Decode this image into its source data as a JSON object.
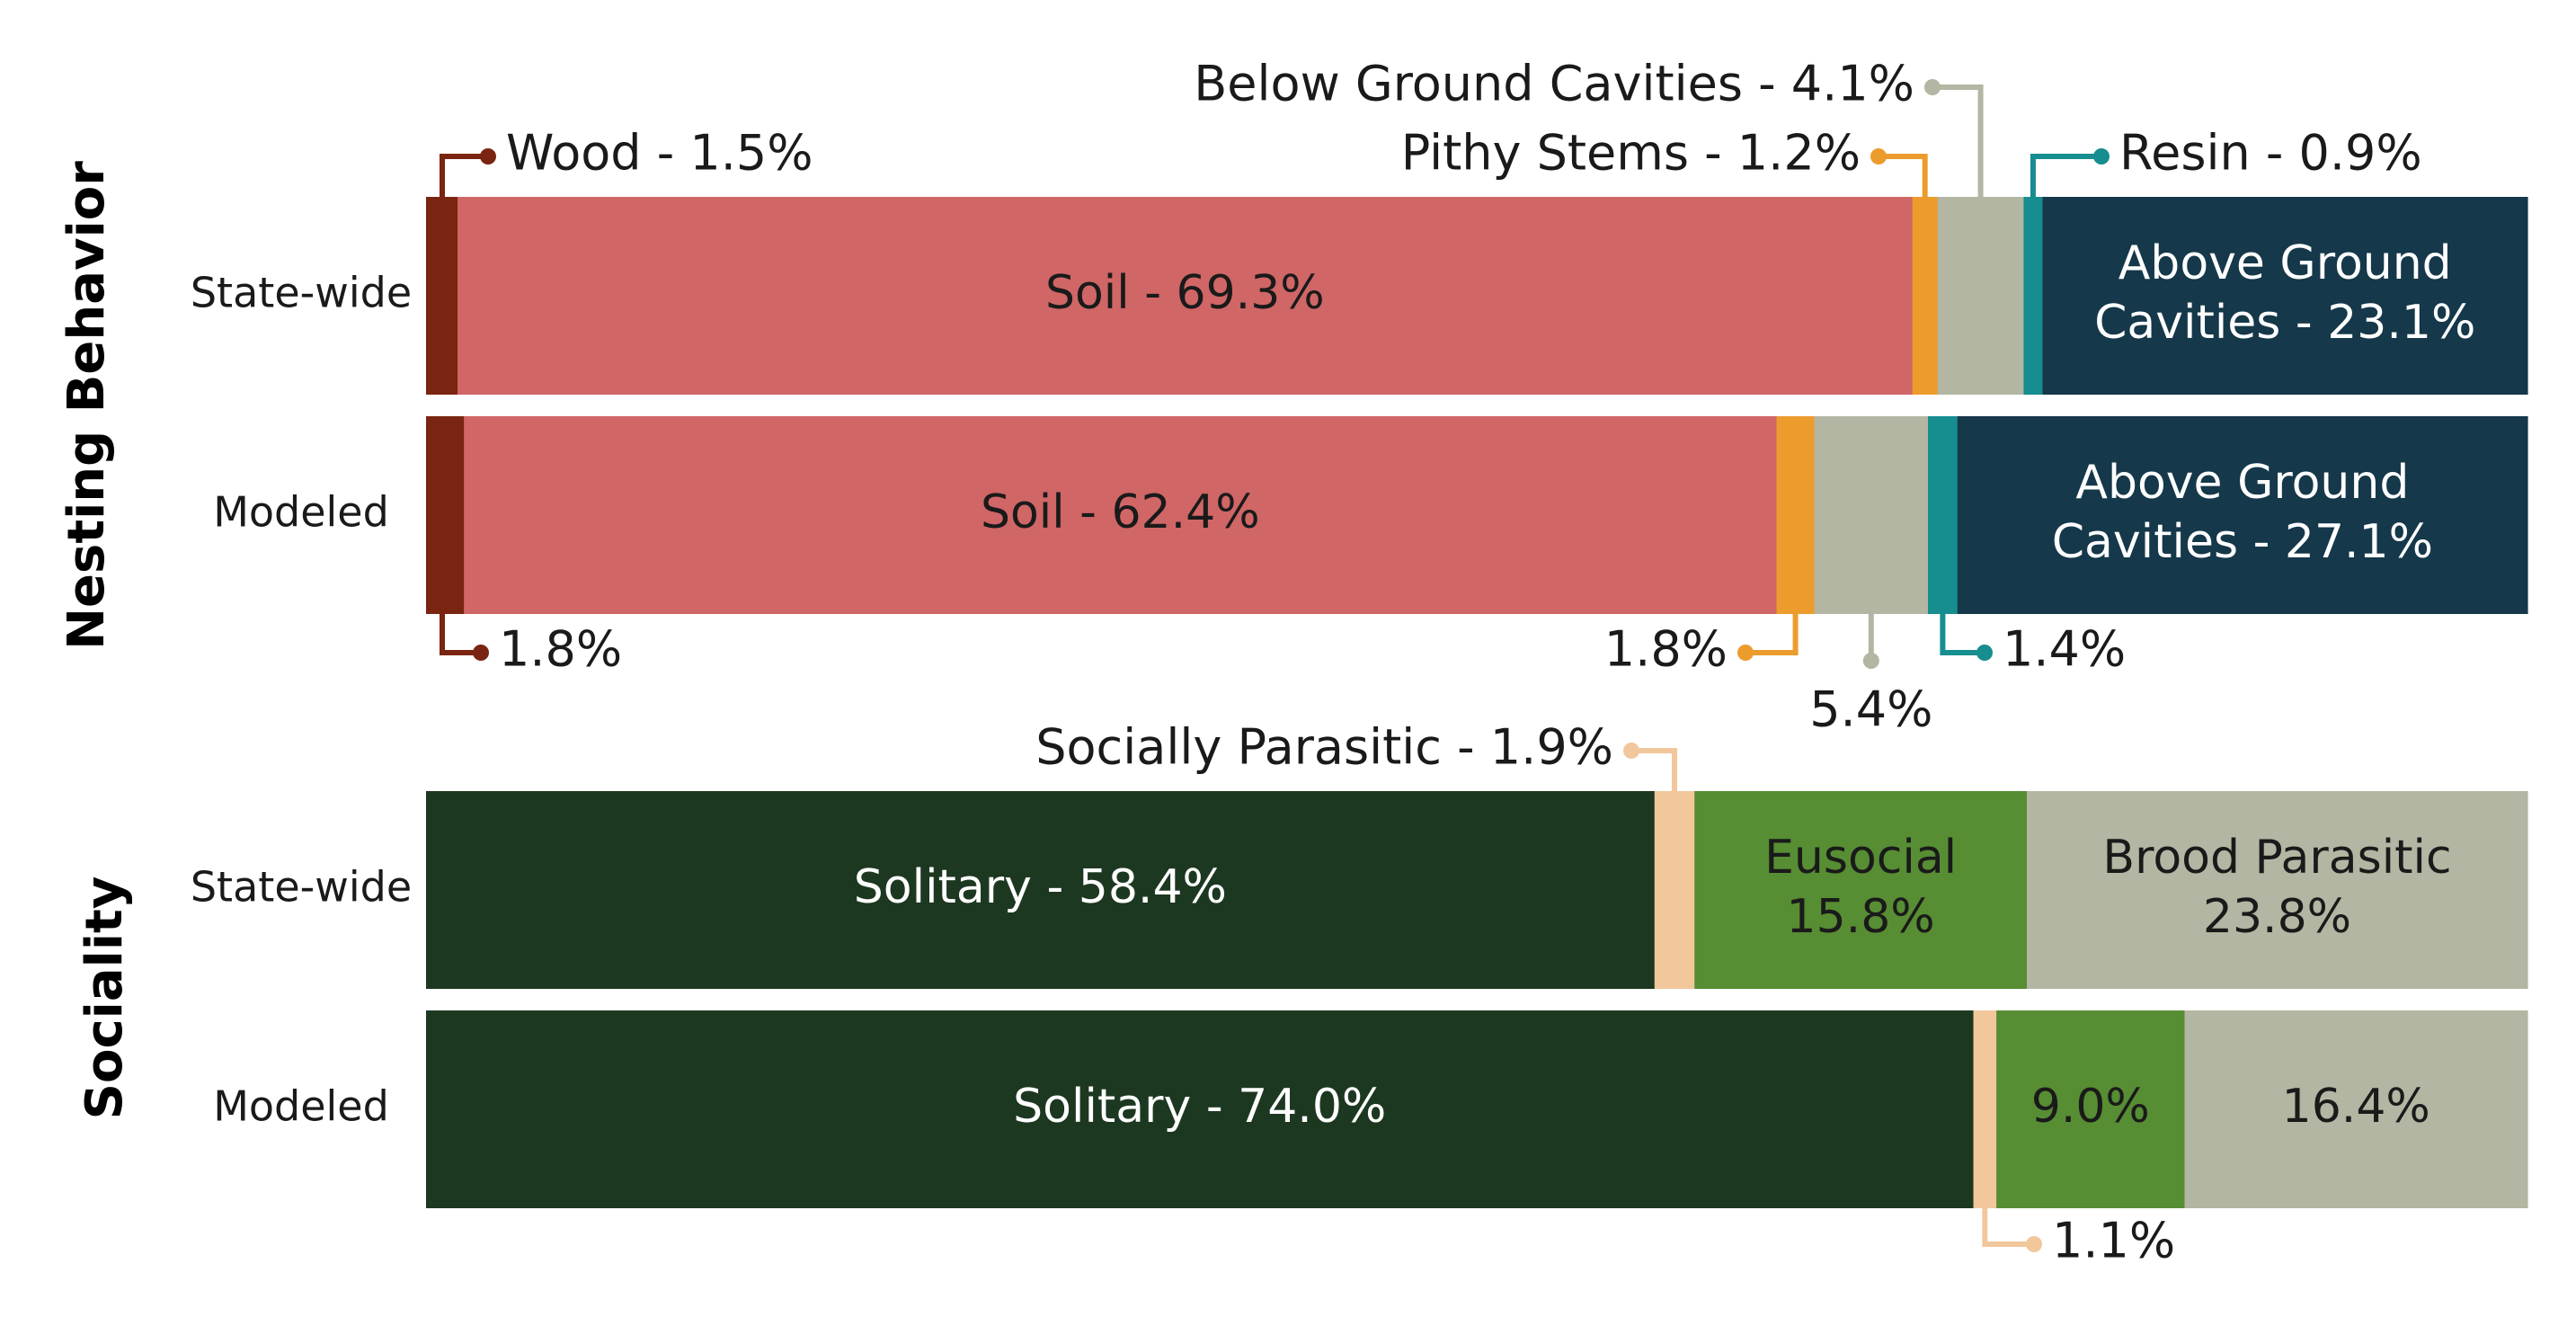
{
  "chart_data": [
    {
      "type": "stacked-bar-100",
      "group": "Nesting Behavior",
      "categories": [
        "State-wide",
        "Modeled"
      ],
      "series": [
        {
          "name": "Wood",
          "color": "#7a2511",
          "values": [
            1.5,
            1.8
          ],
          "labels": [
            "Wood - 1.5%",
            "1.8%"
          ]
        },
        {
          "name": "Soil",
          "color": "#d06666",
          "values": [
            69.3,
            62.4
          ],
          "labels": [
            "Soil - 69.3%",
            "Soil - 62.4%"
          ]
        },
        {
          "name": "Pithy Stems",
          "color": "#ec9c2d",
          "values": [
            1.2,
            1.8
          ],
          "labels": [
            "Pithy Stems - 1.2%",
            "1.8%"
          ]
        },
        {
          "name": "Below Ground Cavities",
          "color": "#b3b6a2",
          "values": [
            4.1,
            5.4
          ],
          "labels": [
            "Below Ground Cavities - 4.1%",
            "5.4%"
          ]
        },
        {
          "name": "Resin",
          "color": "#168d8f",
          "values": [
            0.9,
            1.4
          ],
          "labels": [
            "Resin - 0.9%",
            "1.4%"
          ]
        },
        {
          "name": "Above Ground Cavities",
          "color": "#15384a",
          "values": [
            23.1,
            27.1
          ],
          "labels": [
            [
              "Above Ground",
              "Cavities - 23.1%"
            ],
            [
              "Above Ground",
              "Cavities - 27.1%"
            ]
          ]
        }
      ]
    },
    {
      "type": "stacked-bar-100",
      "group": "Sociality",
      "categories": [
        "State-wide",
        "Modeled"
      ],
      "series": [
        {
          "name": "Solitary",
          "color": "#1d3821",
          "values": [
            58.4,
            74.0
          ],
          "labels": [
            "Solitary - 58.4%",
            "Solitary - 74.0%"
          ]
        },
        {
          "name": "Socially Parasitic",
          "color": "#f1c79b",
          "values": [
            1.9,
            1.1
          ],
          "labels": [
            "Socially Parasitic - 1.9%",
            "1.1%"
          ]
        },
        {
          "name": "Eusocial",
          "color": "#578d33",
          "values": [
            15.8,
            9.0
          ],
          "labels": [
            [
              "Eusocial",
              "15.8%"
            ],
            "9.0%"
          ]
        },
        {
          "name": "Brood Parasitic",
          "color": "#b3b6a2",
          "values": [
            23.8,
            16.4
          ],
          "labels": [
            [
              "Brood Parasitic",
              "23.8%"
            ],
            "16.4%"
          ]
        }
      ]
    }
  ]
}
